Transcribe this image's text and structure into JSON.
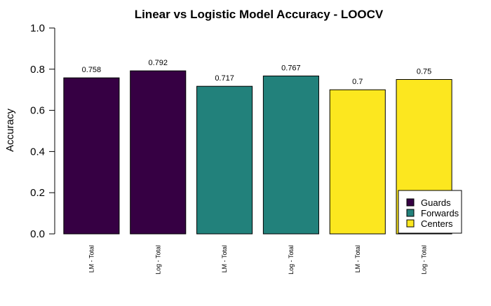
{
  "chart_data": {
    "type": "bar",
    "title": "Linear vs Logistic Model Accuracy - LOOCV",
    "xlabel": "",
    "ylabel": "Accuracy",
    "ylim": [
      0,
      1
    ],
    "yticks": [
      "0.0",
      "0.2",
      "0.4",
      "0.6",
      "0.8",
      "1.0"
    ],
    "ytick_values": [
      0,
      0.2,
      0.4,
      0.6,
      0.8,
      1.0
    ],
    "categories": [
      "LM - Total",
      "Log - Total",
      "LM - Total",
      "Log - Total",
      "LM - Total",
      "Log - Total"
    ],
    "values": [
      0.758,
      0.792,
      0.717,
      0.767,
      0.7,
      0.75
    ],
    "value_labels": [
      "0.758",
      "0.792",
      "0.717",
      "0.767",
      "0.7",
      "0.75"
    ],
    "bar_groups": [
      "Guards",
      "Guards",
      "Forwards",
      "Forwards",
      "Centers",
      "Centers"
    ],
    "grid": false,
    "legend_position": "bottom-right",
    "legend": [
      {
        "name": "Guards",
        "color": "#360043"
      },
      {
        "name": "Forwards",
        "color": "#22817b"
      },
      {
        "name": "Centers",
        "color": "#fce71f"
      }
    ]
  }
}
